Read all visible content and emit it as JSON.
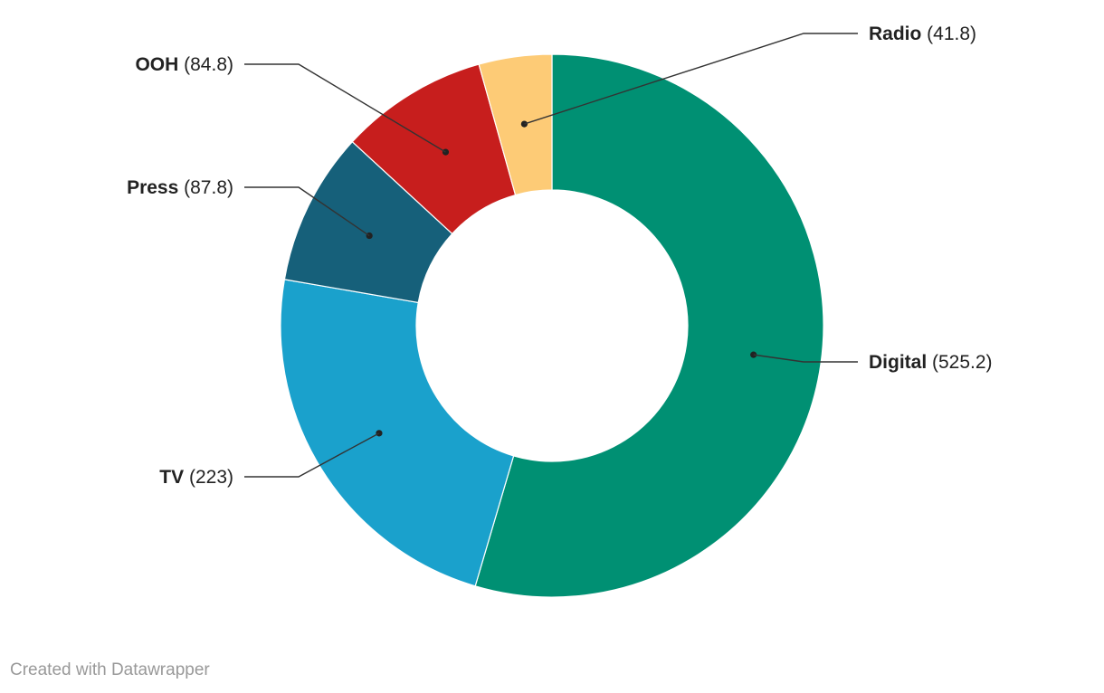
{
  "chart_data": {
    "type": "pie",
    "variant": "donut",
    "slices": [
      {
        "label": "Digital",
        "value": 525.2,
        "value_text": "(525.2)",
        "color": "#009073"
      },
      {
        "label": "TV",
        "value": 223,
        "value_text": "(223)",
        "color": "#1aa1cc"
      },
      {
        "label": "Press",
        "value": 87.8,
        "value_text": "(87.8)",
        "color": "#16607a"
      },
      {
        "label": "OOH",
        "value": 84.8,
        "value_text": "(84.8)",
        "color": "#c71e1d"
      },
      {
        "label": "Radio",
        "value": 41.8,
        "value_text": "(41.8)",
        "color": "#fdcb76"
      }
    ],
    "legend": "none"
  },
  "footer": {
    "credit": "Created with Datawrapper"
  }
}
